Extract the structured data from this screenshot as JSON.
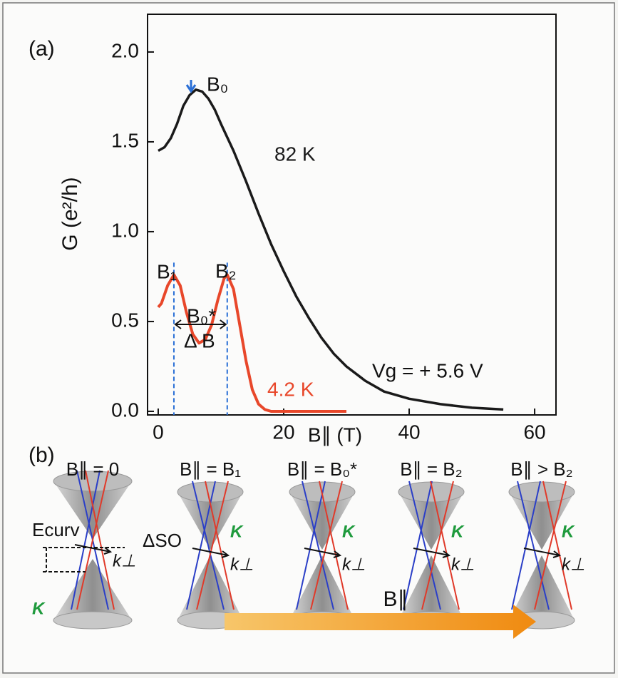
{
  "chart_data": {
    "type": "line",
    "panel_label": "(a)",
    "xlabel": "B∥ (T)",
    "ylabel": "G (e²/h)",
    "xlim": [
      -1.7,
      63.4
    ],
    "ylim": [
      -0.02,
      2.21
    ],
    "xticks": [
      0,
      20,
      40,
      60
    ],
    "yticks": [
      {
        "value": 0,
        "label": "0.0"
      },
      {
        "value": 0.5,
        "label": "0.5"
      },
      {
        "value": 1,
        "label": "1.0"
      },
      {
        "value": 1.5,
        "label": "1.5"
      },
      {
        "value": 2,
        "label": "2.0"
      }
    ],
    "series": [
      {
        "name": "82 K",
        "color": "#1a1a1a",
        "x": [
          0,
          1,
          2,
          3,
          4,
          5,
          6,
          7,
          8,
          9,
          10,
          12,
          14,
          16,
          18,
          20,
          22,
          24,
          26,
          28,
          30,
          33,
          36,
          40,
          45,
          50,
          55
        ],
        "values": [
          1.45,
          1.47,
          1.52,
          1.6,
          1.7,
          1.76,
          1.79,
          1.78,
          1.74,
          1.68,
          1.6,
          1.45,
          1.28,
          1.1,
          0.93,
          0.78,
          0.64,
          0.52,
          0.41,
          0.32,
          0.25,
          0.17,
          0.11,
          0.07,
          0.04,
          0.02,
          0.01
        ]
      },
      {
        "name": "4.2 K",
        "color": "#e8472a",
        "x": [
          0,
          0.5,
          1,
          1.5,
          2.5,
          3.5,
          4.5,
          5.5,
          6.5,
          7.5,
          8.5,
          9.5,
          10.5,
          11,
          12,
          13,
          14,
          15,
          16,
          17,
          18,
          20,
          30
        ],
        "values": [
          0.58,
          0.6,
          0.65,
          0.7,
          0.76,
          0.7,
          0.55,
          0.43,
          0.38,
          0.4,
          0.48,
          0.62,
          0.74,
          0.76,
          0.68,
          0.48,
          0.28,
          0.12,
          0.04,
          0.01,
          0,
          0,
          0
        ]
      }
    ],
    "reference_lines": [
      2.5,
      11
    ],
    "annotations": [
      "B₀",
      "B₁",
      "B₂",
      "B₀*",
      "Δ B",
      "Vg = + 5.6 V"
    ]
  },
  "panel_b": {
    "panel_label": "(b)",
    "states": [
      "B∥ = 0",
      "B∥ = B₁",
      "B∥ = B₀*",
      "B∥ = B₂",
      "B∥ > B₂"
    ],
    "valley_labels": [
      "K",
      "K",
      "K",
      "K",
      "K"
    ],
    "momentum_labels": [
      "k⊥",
      "k⊥",
      "k⊥",
      "k⊥",
      "k⊥"
    ],
    "energy_labels": [
      "Ecurv",
      "ΔSO"
    ],
    "field_arrow": "B∥"
  }
}
